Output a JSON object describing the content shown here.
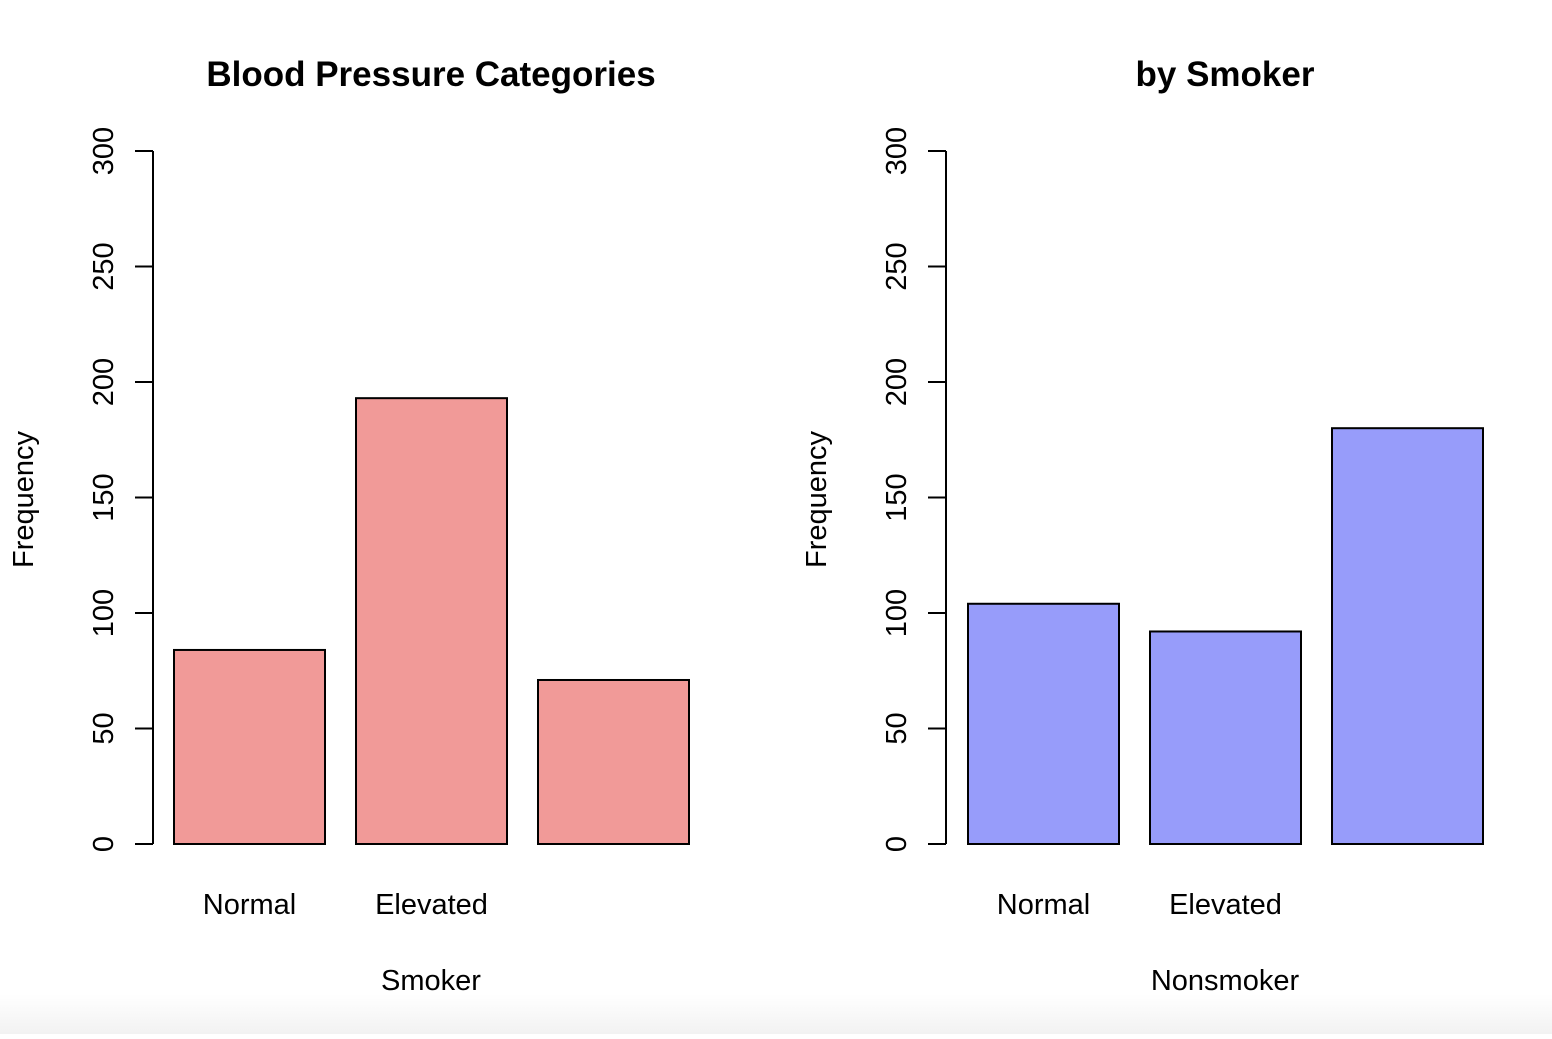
{
  "chart_data": [
    {
      "type": "bar",
      "title": "Blood Pressure Categories",
      "xlabel": "Smoker",
      "ylabel": "Frequency",
      "ylim": [
        0,
        300
      ],
      "yticks": [
        0,
        50,
        100,
        150,
        200,
        250,
        300
      ],
      "categories": [
        "Normal",
        "Elevated",
        ""
      ],
      "values": [
        84,
        193,
        71
      ],
      "bar_color": "#f19a98",
      "grid": false
    },
    {
      "type": "bar",
      "title": "by Smoker",
      "xlabel": "Nonsmoker",
      "ylabel": "Frequency",
      "ylim": [
        0,
        300
      ],
      "yticks": [
        0,
        50,
        100,
        150,
        200,
        250,
        300
      ],
      "categories": [
        "Normal",
        "Elevated",
        ""
      ],
      "values": [
        104,
        92,
        180
      ],
      "bar_color": "#979cfa",
      "grid": false
    }
  ]
}
